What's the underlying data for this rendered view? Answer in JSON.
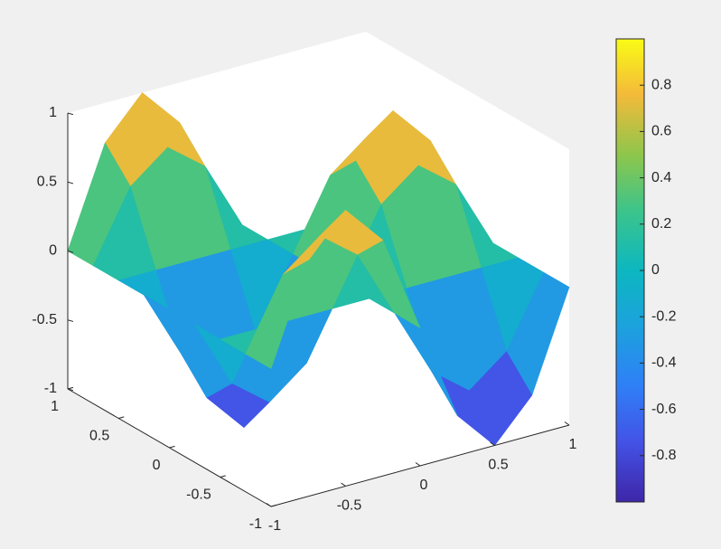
{
  "chart_data": {
    "type": "surface",
    "x": [
      -1,
      -0.75,
      -0.5,
      -0.25,
      0,
      0.25,
      0.5,
      0.75,
      1
    ],
    "y": [
      -1,
      -0.75,
      -0.5,
      -0.25,
      0,
      0.25,
      0.5,
      0.75,
      1
    ],
    "z": [
      [
        0,
        0.71,
        1,
        0.71,
        0,
        -0.71,
        -1,
        -0.71,
        0
      ],
      [
        0,
        0.5,
        0.71,
        0.5,
        0,
        -0.5,
        -0.71,
        -0.5,
        0
      ],
      [
        0,
        0,
        0,
        0,
        0,
        0,
        0,
        0,
        0
      ],
      [
        0,
        -0.5,
        -0.71,
        -0.5,
        0,
        0.5,
        0.71,
        0.5,
        0
      ],
      [
        0,
        -0.71,
        -1,
        -0.71,
        0,
        0.71,
        1,
        0.71,
        0
      ],
      [
        0,
        -0.5,
        -0.71,
        -0.5,
        0,
        0.5,
        0.71,
        0.5,
        0
      ],
      [
        0,
        0,
        0,
        0,
        0,
        0,
        0,
        0,
        0
      ],
      [
        0,
        0.5,
        0.71,
        0.5,
        0,
        -0.5,
        -0.71,
        -0.5,
        0
      ],
      [
        0,
        0.71,
        1,
        0.71,
        0,
        -0.71,
        -1,
        -0.71,
        0
      ]
    ],
    "xlim": [
      -1,
      1
    ],
    "ylim": [
      -1,
      1
    ],
    "zlim": [
      -1,
      1
    ],
    "xticks": [
      -1,
      -0.5,
      0,
      0.5,
      1
    ],
    "yticks": [
      -1,
      -0.5,
      0,
      0.5,
      1
    ],
    "zticks": [
      -1,
      -0.5,
      0,
      0.5,
      1
    ],
    "colorbar": true,
    "clim": [
      -1,
      1
    ],
    "cticks": [
      -0.8,
      -0.6,
      -0.4,
      -0.2,
      0,
      0.2,
      0.4,
      0.6,
      0.8
    ]
  }
}
